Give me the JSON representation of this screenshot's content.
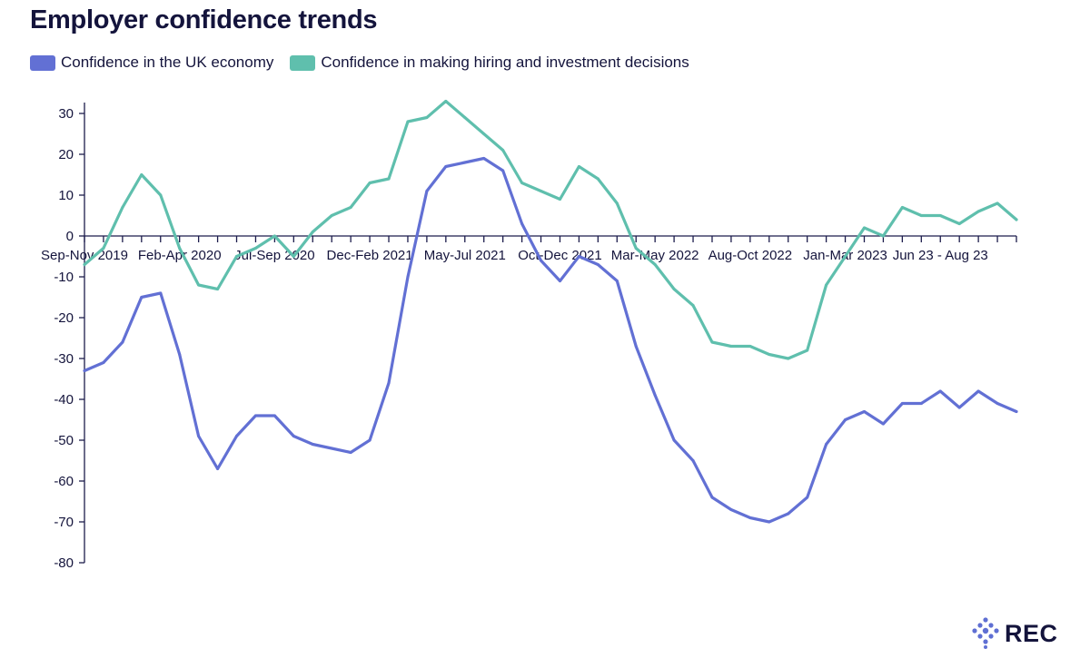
{
  "chart_data": {
    "type": "line",
    "title": "Employer confidence trends",
    "xlabel": "",
    "ylabel": "",
    "ylim": [
      -80,
      30
    ],
    "yticks": [
      30,
      20,
      10,
      0,
      -10,
      -20,
      -30,
      -40,
      -50,
      -60,
      -70,
      -80
    ],
    "x_tick_labels": [
      {
        "index": 0,
        "label": "Sep-Nov 2019"
      },
      {
        "index": 5,
        "label": "Feb-Apr 2020"
      },
      {
        "index": 10,
        "label": "Jul-Sep 2020"
      },
      {
        "index": 15,
        "label": "Dec-Feb 2021"
      },
      {
        "index": 20,
        "label": "May-Jul 2021"
      },
      {
        "index": 25,
        "label": "Oct-Dec 2021"
      },
      {
        "index": 30,
        "label": "Mar-May 2022"
      },
      {
        "index": 35,
        "label": "Aug-Oct 2022"
      },
      {
        "index": 40,
        "label": "Jan-Mar 2023"
      },
      {
        "index": 45,
        "label": "Jun 23 - Aug 23"
      }
    ],
    "grid": false,
    "legend_placement": "top-left",
    "series": [
      {
        "name": "Confidence in the UK economy",
        "color": "#6270d4",
        "values": [
          -33,
          -31,
          -26,
          -15,
          -14,
          -29,
          -49,
          -57,
          -49,
          -44,
          -44,
          -49,
          -51,
          -52,
          -53,
          -50,
          -36,
          -10,
          11,
          17,
          18,
          19,
          16,
          3,
          -6,
          -11,
          -5,
          -7,
          -11,
          -27,
          -39,
          -50,
          -55,
          -64,
          -67,
          -69,
          -70,
          -68,
          -64,
          -51,
          -45,
          -43,
          -46,
          -41,
          -41,
          -38,
          -42,
          -38,
          -41,
          -43
        ]
      },
      {
        "name": "Confidence in making hiring and investment decisions",
        "color": "#5fbfad",
        "values": [
          -7,
          -3,
          7,
          15,
          10,
          -3,
          -12,
          -13,
          -5,
          -3,
          0,
          -5,
          1,
          5,
          7,
          13,
          14,
          28,
          29,
          33,
          29,
          25,
          21,
          13,
          11,
          9,
          17,
          14,
          8,
          -3,
          -7,
          -13,
          -17,
          -26,
          -27,
          -27,
          -29,
          -30,
          -28,
          -12,
          -5,
          2,
          0,
          7,
          5,
          5,
          3,
          6,
          8,
          4
        ]
      }
    ]
  },
  "logo": {
    "text": "REC"
  }
}
